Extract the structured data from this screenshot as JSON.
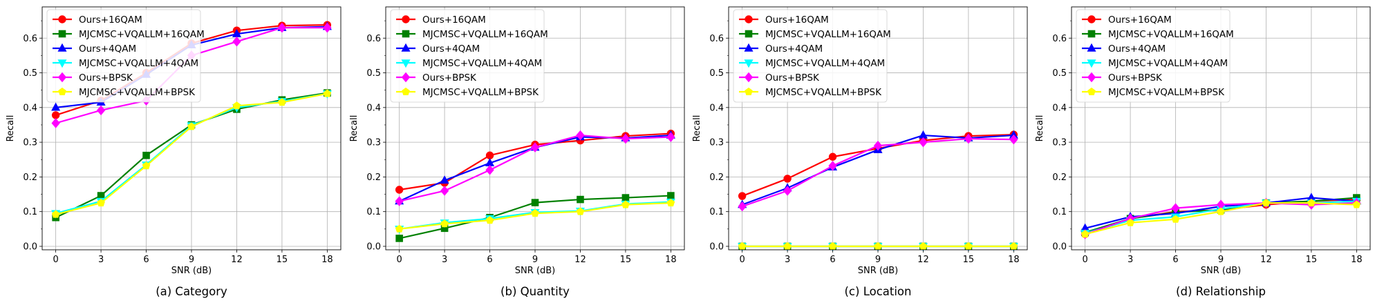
{
  "figure": {
    "series_names": [
      "Ours+16QAM",
      "MJCMSC+VQALLM+16QAM",
      "Ours+4QAM",
      "MJCMSC+VQALLM+4QAM",
      "Ours+BPSK",
      "MJCMSC+VQALLM+BPSK"
    ],
    "series_colors": [
      "#ff0000",
      "#008000",
      "#0000ff",
      "#00ffff",
      "#ff00ff",
      "#ffff00"
    ],
    "series_markers": [
      "circle",
      "square",
      "triangle-up",
      "triangle-down",
      "diamond",
      "pentagon"
    ]
  },
  "chart_data": [
    {
      "type": "line",
      "caption": "(a) Category",
      "xlabel": "SNR (dB)",
      "ylabel": "Recall",
      "x": [
        0,
        3,
        6,
        9,
        12,
        15,
        18
      ],
      "xticks": [
        "0",
        "3",
        "6",
        "9",
        "12",
        "15",
        "18"
      ],
      "yticks": [
        "0.0",
        "0.1",
        "0.2",
        "0.3",
        "0.4",
        "0.5",
        "0.6"
      ],
      "ylim": [
        -0.01,
        0.69
      ],
      "grid": true,
      "legend": "top-left",
      "series": [
        {
          "name": "Ours+16QAM",
          "values": [
            0.378,
            0.42,
            0.5,
            0.585,
            0.622,
            0.636,
            0.638
          ]
        },
        {
          "name": "MJCMSC+VQALLM+16QAM",
          "values": [
            0.083,
            0.146,
            0.262,
            0.35,
            0.395,
            0.422,
            0.442
          ]
        },
        {
          "name": "Ours+4QAM",
          "values": [
            0.4,
            0.415,
            0.495,
            0.58,
            0.612,
            0.63,
            0.633
          ]
        },
        {
          "name": "MJCMSC+VQALLM+4QAM",
          "values": [
            0.095,
            0.13,
            0.235,
            0.348,
            0.4,
            0.418,
            0.44
          ]
        },
        {
          "name": "Ours+BPSK",
          "values": [
            0.355,
            0.392,
            0.42,
            0.55,
            0.59,
            0.63,
            0.63
          ]
        },
        {
          "name": "MJCMSC+VQALLM+BPSK",
          "values": [
            0.092,
            0.125,
            0.232,
            0.345,
            0.405,
            0.415,
            0.44
          ]
        }
      ]
    },
    {
      "type": "line",
      "caption": "(b) Quantity",
      "xlabel": "SNR (dB)",
      "ylabel": "Recall",
      "x": [
        0,
        3,
        6,
        9,
        12,
        15,
        18
      ],
      "xticks": [
        "0",
        "3",
        "6",
        "9",
        "12",
        "15",
        "18"
      ],
      "yticks": [
        "0.0",
        "0.1",
        "0.2",
        "0.3",
        "0.4",
        "0.5",
        "0.6"
      ],
      "ylim": [
        -0.01,
        0.69
      ],
      "grid": true,
      "legend": "top-left",
      "series": [
        {
          "name": "Ours+16QAM",
          "values": [
            0.163,
            0.183,
            0.262,
            0.293,
            0.305,
            0.318,
            0.325
          ]
        },
        {
          "name": "MJCMSC+VQALLM+16QAM",
          "values": [
            0.023,
            0.052,
            0.083,
            0.126,
            0.135,
            0.14,
            0.146
          ]
        },
        {
          "name": "Ours+4QAM",
          "values": [
            0.13,
            0.19,
            0.24,
            0.285,
            0.315,
            0.312,
            0.32
          ]
        },
        {
          "name": "MJCMSC+VQALLM+4QAM",
          "values": [
            0.05,
            0.068,
            0.08,
            0.098,
            0.102,
            0.122,
            0.128
          ]
        },
        {
          "name": "Ours+BPSK",
          "values": [
            0.13,
            0.16,
            0.22,
            0.285,
            0.32,
            0.31,
            0.315
          ]
        },
        {
          "name": "MJCMSC+VQALLM+BPSK",
          "values": [
            0.05,
            0.065,
            0.075,
            0.095,
            0.1,
            0.12,
            0.125
          ]
        }
      ]
    },
    {
      "type": "line",
      "caption": "(c) Location",
      "xlabel": "SNR (dB)",
      "ylabel": "Recall",
      "x": [
        0,
        3,
        6,
        9,
        12,
        15,
        18
      ],
      "xticks": [
        "0",
        "3",
        "6",
        "9",
        "12",
        "15",
        "18"
      ],
      "yticks": [
        "0.0",
        "0.1",
        "0.2",
        "0.3",
        "0.4",
        "0.5",
        "0.6"
      ],
      "ylim": [
        -0.01,
        0.69
      ],
      "grid": true,
      "legend": "top-left",
      "series": [
        {
          "name": "Ours+16QAM",
          "values": [
            0.145,
            0.195,
            0.258,
            0.282,
            0.305,
            0.318,
            0.322
          ]
        },
        {
          "name": "MJCMSC+VQALLM+16QAM",
          "values": [
            0.0,
            0.0,
            0.0,
            0.0,
            0.0,
            0.0,
            0.0
          ]
        },
        {
          "name": "Ours+4QAM",
          "values": [
            0.12,
            0.168,
            0.228,
            0.278,
            0.32,
            0.312,
            0.32
          ]
        },
        {
          "name": "MJCMSC+VQALLM+4QAM",
          "values": [
            0.0,
            0.0,
            0.0,
            0.0,
            0.0,
            0.0,
            0.0
          ]
        },
        {
          "name": "Ours+BPSK",
          "values": [
            0.115,
            0.16,
            0.232,
            0.29,
            0.3,
            0.31,
            0.308
          ]
        },
        {
          "name": "MJCMSC+VQALLM+BPSK",
          "values": [
            0.0,
            0.0,
            0.0,
            0.0,
            0.0,
            0.0,
            0.0
          ]
        }
      ]
    },
    {
      "type": "line",
      "caption": "(d) Relationship",
      "xlabel": "SNR (dB)",
      "ylabel": "Recall",
      "x": [
        0,
        3,
        6,
        9,
        12,
        15,
        18
      ],
      "xticks": [
        "0",
        "3",
        "6",
        "9",
        "12",
        "15",
        "18"
      ],
      "yticks": [
        "0.0",
        "0.1",
        "0.2",
        "0.3",
        "0.4",
        "0.5",
        "0.6"
      ],
      "ylim": [
        -0.01,
        0.69
      ],
      "grid": true,
      "legend": "top-left",
      "series": [
        {
          "name": "Ours+16QAM",
          "values": [
            0.035,
            0.08,
            0.1,
            0.105,
            0.12,
            0.13,
            0.135
          ]
        },
        {
          "name": "MJCMSC+VQALLM+16QAM",
          "values": [
            0.04,
            0.08,
            0.098,
            0.105,
            0.125,
            0.13,
            0.14
          ]
        },
        {
          "name": "Ours+4QAM",
          "values": [
            0.052,
            0.085,
            0.095,
            0.115,
            0.125,
            0.14,
            0.13
          ]
        },
        {
          "name": "MJCMSC+VQALLM+4QAM",
          "values": [
            0.038,
            0.075,
            0.085,
            0.108,
            0.125,
            0.125,
            0.13
          ]
        },
        {
          "name": "Ours+BPSK",
          "values": [
            0.035,
            0.08,
            0.11,
            0.12,
            0.125,
            0.12,
            0.125
          ]
        },
        {
          "name": "MJCMSC+VQALLM+BPSK",
          "values": [
            0.035,
            0.068,
            0.078,
            0.1,
            0.125,
            0.125,
            0.12
          ]
        }
      ]
    }
  ]
}
